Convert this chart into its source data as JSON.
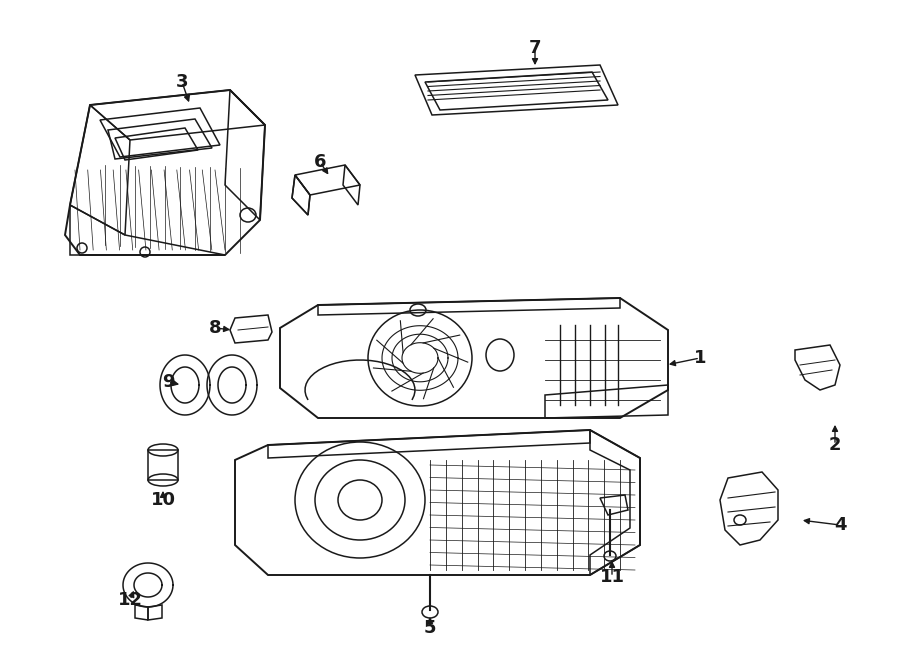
{
  "background_color": "#ffffff",
  "line_color": "#1a1a1a",
  "fig_width": 9.0,
  "fig_height": 6.61,
  "dpi": 100,
  "lw": 1.1
}
